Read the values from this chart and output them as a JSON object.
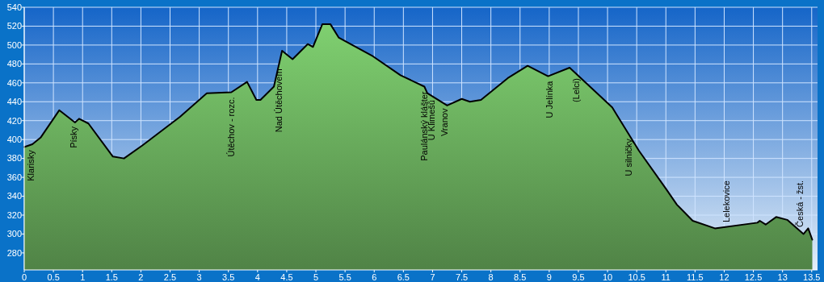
{
  "chart_data": {
    "type": "area",
    "xlim": [
      0,
      13.6
    ],
    "ylim": [
      262,
      540
    ],
    "xticks": [
      0,
      0.5,
      1,
      1.5,
      2,
      2.5,
      3,
      3.5,
      4,
      4.5,
      5,
      5.5,
      6,
      6.5,
      7,
      7.5,
      8,
      8.5,
      9,
      9.5,
      10,
      10.5,
      11,
      11.5,
      12,
      12.5,
      13,
      13.5
    ],
    "yticks": [
      280,
      300,
      320,
      340,
      360,
      380,
      400,
      420,
      440,
      460,
      480,
      500,
      520,
      540
    ],
    "grid": true,
    "line_style": "solid",
    "series": [
      {
        "color": "#7fd070",
        "x": [
          0,
          0.14,
          0.28,
          0.6,
          0.87,
          0.94,
          1.1,
          1.52,
          1.71,
          2.03,
          2.67,
          3.13,
          3.55,
          3.82,
          3.98,
          4.05,
          4.28,
          4.42,
          4.6,
          4.86,
          4.95,
          5.11,
          5.25,
          5.39,
          5.98,
          6.45,
          6.86,
          6.91,
          7.25,
          7.5,
          7.64,
          7.83,
          8.29,
          8.63,
          8.98,
          9.35,
          10.08,
          10.54,
          11.0,
          11.19,
          11.46,
          11.84,
          12.57,
          12.61,
          12.71,
          12.89,
          13.08,
          13.36,
          13.44,
          13.51
        ],
        "values": [
          392,
          395,
          402,
          431,
          418,
          422,
          417,
          382,
          380,
          394,
          424,
          449,
          450,
          461,
          442,
          442,
          456,
          494,
          485,
          501,
          498,
          522,
          522,
          508,
          488,
          468,
          456,
          449,
          436,
          443,
          440,
          442,
          465,
          478,
          467,
          476,
          434,
          388,
          348,
          331,
          314,
          306,
          312,
          314,
          310,
          318,
          315,
          300,
          306,
          294
        ]
      }
    ],
    "annotations": [
      {
        "text": "Klarisky",
        "x": 0.11,
        "y": 394
      },
      {
        "text": "Písky",
        "x": 0.85,
        "y": 419
      },
      {
        "text": "Útěchov - rozc.",
        "x": 3.55,
        "y": 450
      },
      {
        "text": "Nad Útěchovem",
        "x": 4.37,
        "y": 480
      },
      {
        "text": "Paulánský klášter",
        "x": 6.86,
        "y": 456
      },
      {
        "text": "U Klimešů",
        "x": 6.98,
        "y": 447
      },
      {
        "text": "Vranov",
        "x": 7.21,
        "y": 438
      },
      {
        "text": "U Jelínka",
        "x": 9.0,
        "y": 467
      },
      {
        "text": "(Lelci)",
        "x": 9.46,
        "y": 470
      },
      {
        "text": "U silničky",
        "x": 10.36,
        "y": 406
      },
      {
        "text": "Lelekovice",
        "x": 12.04,
        "y": 308
      },
      {
        "text": "Česká - žst.",
        "x": 13.3,
        "y": 303
      }
    ]
  }
}
